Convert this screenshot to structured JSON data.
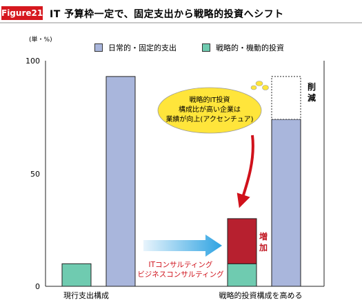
{
  "figure_label": "Figure21",
  "title": "IT 予算枠一定で、固定支出から戦略的投資へシフト",
  "chart_data": {
    "type": "bar",
    "stacked": true,
    "unit_label": "(単・%)",
    "categories": [
      "現行支出構成",
      "戦略的投資構成を高める"
    ],
    "series": [
      {
        "name": "日常的・固定的支出",
        "color": "#a9b6dc",
        "values": [
          93,
          74
        ]
      },
      {
        "name": "戦略的・機動的投資",
        "color": "#6fcbb0",
        "values": [
          10,
          10
        ]
      },
      {
        "name": "",
        "color": "#b7202f",
        "values": [
          0,
          20
        ]
      }
    ],
    "reduced_segment": {
      "category": "戦略的投資構成を高める",
      "from": 74,
      "to": 93,
      "label": "削減"
    },
    "increase_label": "増加",
    "yticks": [
      0,
      50,
      100
    ],
    "ylim": [
      0,
      100
    ],
    "grid": false,
    "legend_position": "top",
    "annotations": {
      "callout": [
        "戦略的IT投資",
        "構成比が高い企業は",
        "業績が向上(アクセンチュア)"
      ],
      "arrow_text": [
        "ITコンサルティング",
        "ビジネスコンサルティング"
      ]
    }
  }
}
